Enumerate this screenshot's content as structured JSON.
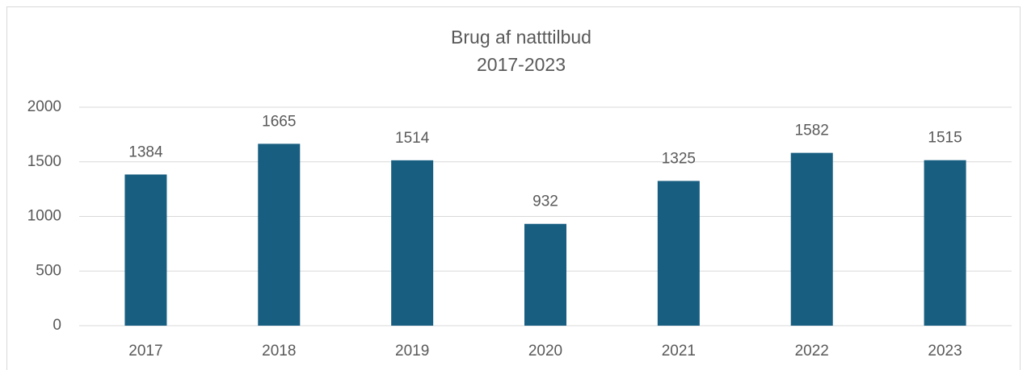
{
  "chart_data": {
    "type": "bar",
    "title": "Brug af natttilbud",
    "subtitle": "2017-2023",
    "categories": [
      "2017",
      "2018",
      "2019",
      "2020",
      "2021",
      "2022",
      "2023"
    ],
    "values": [
      1384,
      1665,
      1514,
      932,
      1325,
      1582,
      1515
    ],
    "color": "#175e81",
    "ylim": [
      0,
      2000
    ],
    "yticks": [
      0,
      500,
      1000,
      1500,
      2000
    ],
    "grid": true,
    "data_labels": true
  }
}
